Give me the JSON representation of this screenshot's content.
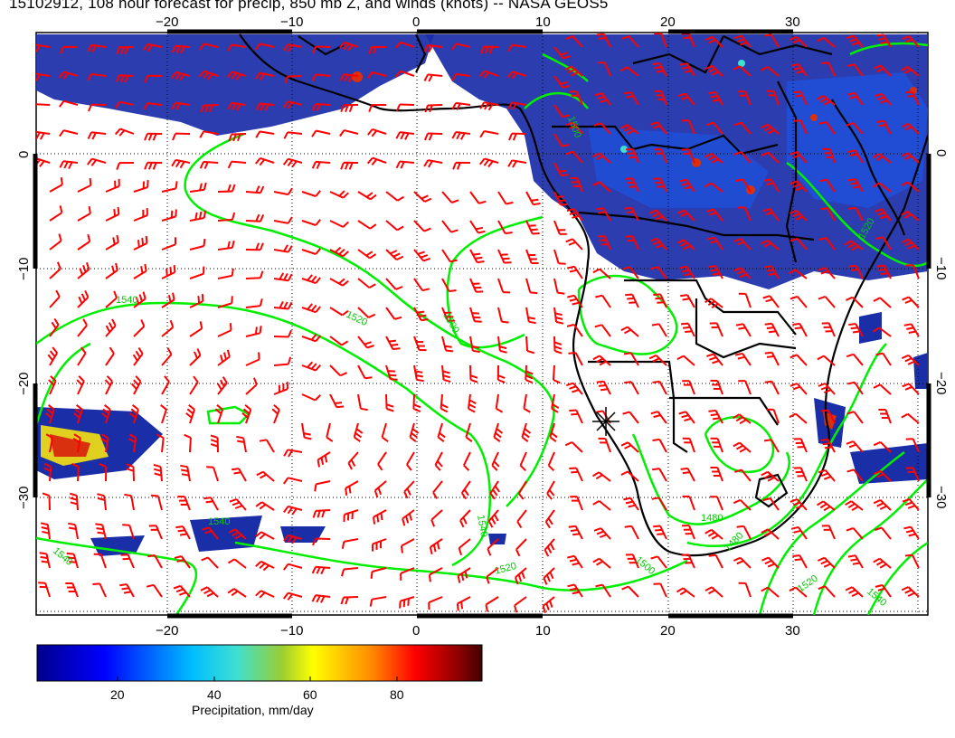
{
  "title": "15102912, 108 hour forecast for precip, 850 mb Z, and winds (knots) -- NASA GEOS5",
  "map": {
    "lon_ticks": [
      "−20",
      "−10",
      "0",
      "10",
      "20",
      "30"
    ],
    "lat_ticks": [
      "0",
      "−10",
      "−20",
      "−30"
    ],
    "contour_labels": [
      "1540",
      "1520",
      "1500",
      "1480",
      "1540",
      "1540",
      "1520",
      "1500",
      "1480",
      "1520",
      "1540",
      "1500",
      "1520",
      "1540"
    ],
    "colors": {
      "land_border": "#000000",
      "wind_barb": "#ff0000",
      "contour": "#00ee00",
      "grid": "#000000"
    }
  },
  "colorbar": {
    "ticks": [
      "20",
      "40",
      "60",
      "80"
    ],
    "title": "Precipitation, mm/day",
    "colors": [
      "#00008b",
      "#0000ff",
      "#00bfff",
      "#40e0d0",
      "#9acd32",
      "#ffff00",
      "#ff8c00",
      "#ff0000",
      "#8b0000",
      "#400000"
    ]
  }
}
